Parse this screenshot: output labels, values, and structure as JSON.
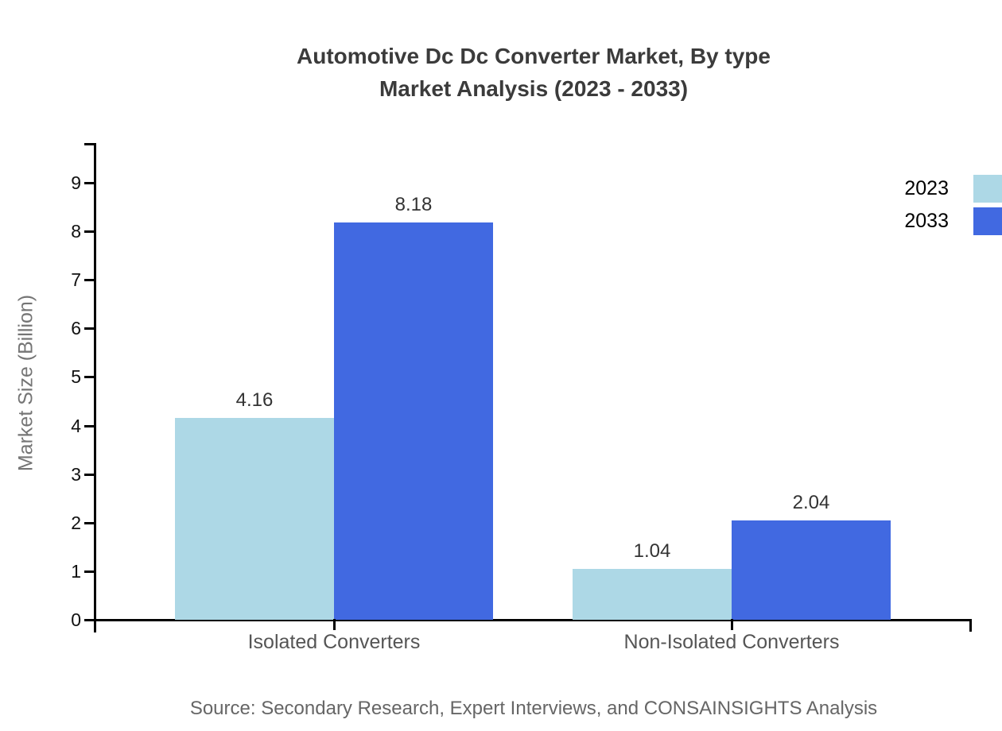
{
  "title": {
    "line1": "Automotive Dc Dc Converter Market, By type",
    "line2": "Market Analysis (2023 - 2033)"
  },
  "source": "Source: Secondary Research, Expert Interviews, and CONSAINSIGHTS Analysis",
  "chart_data": {
    "type": "bar",
    "categories": [
      "Isolated Converters",
      "Non-Isolated Converters"
    ],
    "series": [
      {
        "name": "2023",
        "color": "#add8e6",
        "values": [
          4.16,
          1.04
        ]
      },
      {
        "name": "2033",
        "color": "#4169e1",
        "values": [
          8.18,
          2.04
        ]
      }
    ],
    "title": "Automotive Dc Dc Converter Market, By type Market Analysis (2023 - 2033)",
    "xlabel": "",
    "ylabel": "Market Size (Billion)",
    "ylim": [
      0,
      9.82
    ],
    "yticks": [
      0,
      1,
      2,
      3,
      4,
      5,
      6,
      7,
      8,
      9
    ],
    "grid": false,
    "legend_position": "top-right",
    "value_labels": [
      "4.16",
      "8.18",
      "1.04",
      "2.04"
    ]
  },
  "colors": {
    "title_text": "#3b3b3b",
    "axis": "#000000",
    "tick_label": "#111111",
    "value_label": "#333333",
    "category_label": "#555555",
    "axis_title": "#757575",
    "legend_text": "#000000",
    "source_text": "#666666",
    "background": "#ffffff"
  }
}
